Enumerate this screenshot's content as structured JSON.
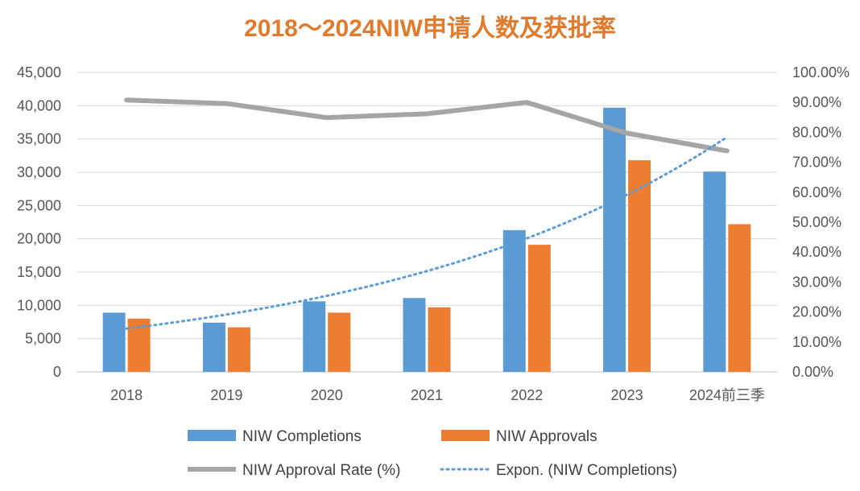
{
  "chart_data": {
    "type": "bar",
    "title": "2018～2024NIW申请人数及获批率",
    "categories": [
      "2018",
      "2019",
      "2020",
      "2021",
      "2022",
      "2023",
      "2024前三季"
    ],
    "y_left": {
      "ylim": [
        0,
        45000
      ],
      "ticks": [
        "0",
        "5,000",
        "10,000",
        "15,000",
        "20,000",
        "25,000",
        "30,000",
        "35,000",
        "40,000",
        "45,000"
      ]
    },
    "y_right": {
      "ylim": [
        0,
        100
      ],
      "ticks": [
        "0.00%",
        "10.00%",
        "20.00%",
        "30.00%",
        "40.00%",
        "50.00%",
        "60.00%",
        "70.00%",
        "80.00%",
        "90.00%",
        "100.00%"
      ]
    },
    "series": [
      {
        "name": "NIW Completions",
        "type": "bar",
        "axis": "left",
        "color": "#5B9BD5",
        "values": [
          8900,
          7400,
          10600,
          11100,
          21300,
          39700,
          30100
        ]
      },
      {
        "name": "NIW Approvals",
        "type": "bar",
        "axis": "left",
        "color": "#ED7D31",
        "values": [
          8000,
          6700,
          8900,
          9700,
          19100,
          31800,
          22200
        ]
      },
      {
        "name": "NIW Approval Rate (%)",
        "type": "line",
        "axis": "right",
        "color": "#A5A5A5",
        "values": [
          90.8,
          89.6,
          84.9,
          86.2,
          90.0,
          79.7,
          73.8
        ]
      },
      {
        "name": "Expon. (NIW Completions)",
        "type": "trendline",
        "axis": "left",
        "color": "#5B9BD5",
        "values": [
          6500,
          8617,
          11424,
          15145,
          20079,
          26620,
          35290
        ]
      }
    ],
    "legend_position": "bottom",
    "grid": true
  }
}
